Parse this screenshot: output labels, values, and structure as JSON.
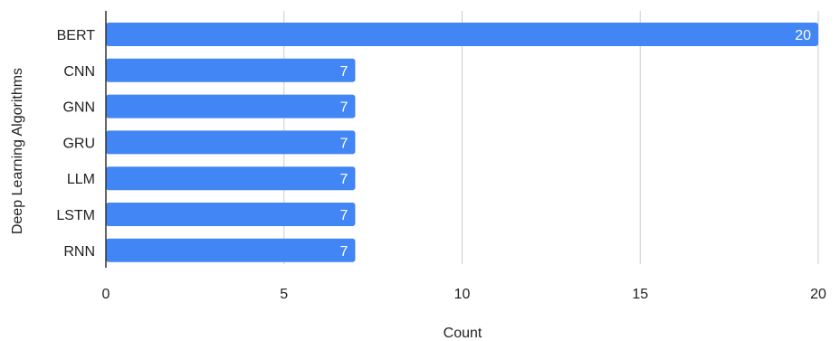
{
  "chart_data": {
    "type": "bar",
    "orientation": "horizontal",
    "title": "",
    "xlabel": "Count",
    "ylabel": "Deep Learning Algorithms",
    "categories": [
      "BERT",
      "CNN",
      "GNN",
      "GRU",
      "LLM",
      "LSTM",
      "RNN"
    ],
    "values": [
      20,
      7,
      7,
      7,
      7,
      7,
      7
    ],
    "xlim": [
      0,
      20
    ],
    "x_ticks": [
      0,
      5,
      10,
      15,
      20
    ],
    "grid": true,
    "legend": "none",
    "bar_color": "#4285F4",
    "data_labels": true
  }
}
